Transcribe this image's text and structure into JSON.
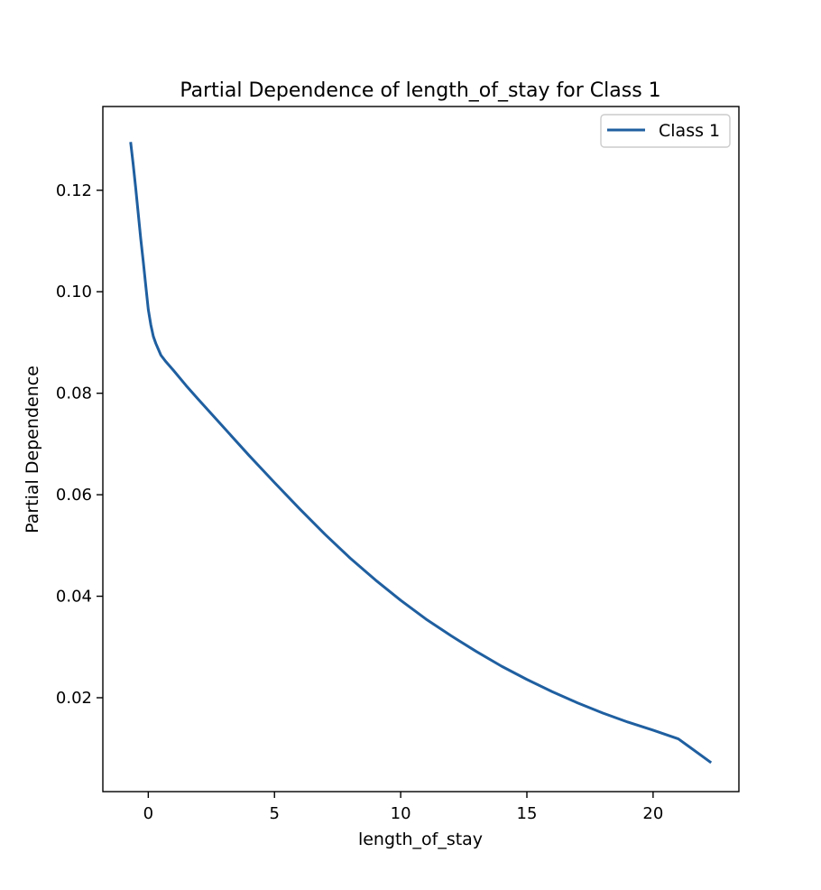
{
  "chart_data": {
    "type": "line",
    "title": "Partial Dependence of length_of_stay for Class 1",
    "xlabel": "length_of_stay",
    "ylabel": "Partial Dependence",
    "xlim": [
      -1.8,
      23.4
    ],
    "ylim": [
      0.0015,
      0.1365
    ],
    "xticks": [
      0,
      5,
      10,
      15,
      20
    ],
    "xtick_labels": [
      "0",
      "5",
      "10",
      "15",
      "20"
    ],
    "yticks": [
      0.02,
      0.04,
      0.06,
      0.08,
      0.1,
      0.12
    ],
    "ytick_labels": [
      "0.02",
      "0.04",
      "0.06",
      "0.08",
      "0.10",
      "0.12"
    ],
    "grid": false,
    "legend": {
      "position": "top-right",
      "entries": [
        "Class 1"
      ]
    },
    "series": [
      {
        "name": "Class 1",
        "color": "#1f5fa0",
        "x": [
          -0.7,
          -0.6,
          -0.5,
          -0.4,
          -0.3,
          -0.2,
          -0.1,
          0.0,
          0.1,
          0.2,
          0.3,
          0.5,
          0.7,
          1.0,
          1.5,
          2.0,
          3.0,
          4.0,
          5.0,
          6.0,
          7.0,
          8.0,
          9.0,
          10.0,
          11.0,
          12.0,
          13.0,
          14.0,
          15.0,
          16.0,
          17.0,
          18.0,
          19.0,
          20.0,
          21.0,
          22.3
        ],
        "y": [
          0.1295,
          0.1252,
          0.1205,
          0.1155,
          0.1105,
          0.106,
          0.1012,
          0.0965,
          0.0935,
          0.0912,
          0.0898,
          0.0875,
          0.0862,
          0.0845,
          0.0815,
          0.0787,
          0.0732,
          0.0677,
          0.0624,
          0.0572,
          0.0522,
          0.0475,
          0.0432,
          0.0392,
          0.0355,
          0.0322,
          0.0291,
          0.0262,
          0.0236,
          0.0212,
          0.019,
          0.017,
          0.0152,
          0.0136,
          0.0119,
          0.0072
        ]
      }
    ]
  }
}
